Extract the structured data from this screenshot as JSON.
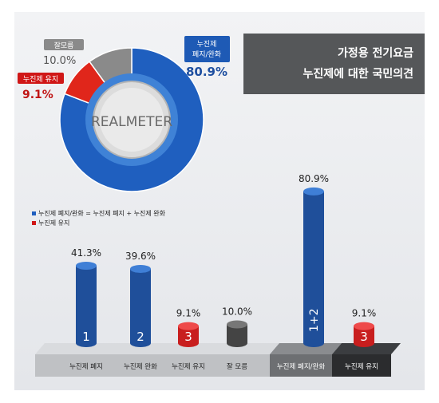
{
  "header": {
    "line1": "가정용 전기요금",
    "line2": "누진제에 대한 국민의견"
  },
  "logo_text": "REALMETER",
  "legend": {
    "item1": "누진제 폐지/완화 = 누진제 폐지 + 누진제 완화",
    "item2": "누진제 유지",
    "colors": {
      "blue": "#1f5fbf",
      "red": "#d01717"
    }
  },
  "donut_labels": {
    "abolish_relax": {
      "line1": "누진제",
      "line2": "폐지/완화",
      "value": "80.9%"
    },
    "keep": {
      "name": "누진제 유지",
      "value": "9.1%"
    },
    "unknown": {
      "name": "잘모름",
      "value": "10.0%"
    }
  },
  "chart_data": [
    {
      "type": "pie",
      "title": "",
      "categories": [
        "누진제 폐지/완화",
        "누진제 유지",
        "잘모름"
      ],
      "values": [
        80.9,
        9.1,
        10.0
      ],
      "colors": [
        "#1f5fbf",
        "#e0261b",
        "#8a8a8a"
      ]
    },
    {
      "type": "bar",
      "title": "",
      "categories": [
        "누진제 폐지",
        "누진제 완화",
        "누진제 유지",
        "잘 모름",
        "누진제 폐지/완화",
        "누진제 유지"
      ],
      "values": [
        41.3,
        39.6,
        9.1,
        10.0,
        80.9,
        9.1
      ],
      "value_labels": [
        "41.3%",
        "39.6%",
        "9.1%",
        "10.0%",
        "80.9%",
        "9.1%"
      ],
      "bar_markers": [
        "1",
        "2",
        "3",
        "",
        "1+2",
        "3"
      ],
      "bar_colors": [
        "#1f4f9a",
        "#1f4f9a",
        "#c81e1e",
        "#444444",
        "#1f4f9a",
        "#c81e1e"
      ],
      "ylim": [
        0,
        100
      ]
    }
  ]
}
